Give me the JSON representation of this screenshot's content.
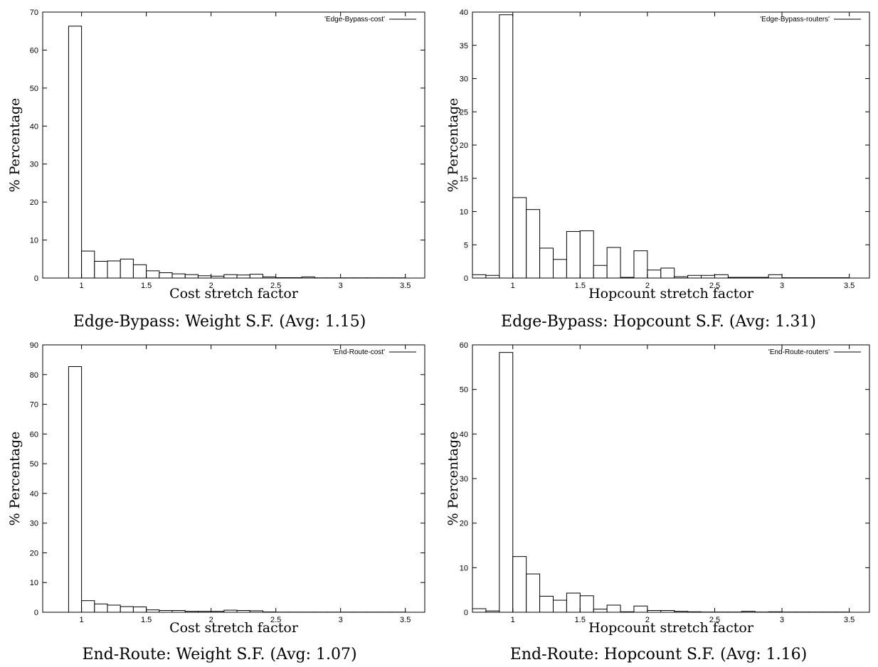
{
  "chart_data": [
    {
      "type": "bar",
      "title": "",
      "xlabel": "Cost  stretch  factor",
      "ylabel": "%  Percentage",
      "caption": "Edge-Bypass:  Weight S.F. (Avg:  1.15)",
      "legend": "'Edge-Bypass-cost'",
      "legend_position": "top-right",
      "xlim": [
        0.7,
        3.65
      ],
      "ylim": [
        0,
        70
      ],
      "xticks": [
        "1",
        "1.5",
        "2",
        "2.5",
        "3",
        "3.5"
      ],
      "yticks": [
        "0",
        "10",
        "20",
        "30",
        "40",
        "50",
        "60",
        "70"
      ],
      "bin_width": 0.1,
      "x": [
        0.95,
        1.05,
        1.15,
        1.25,
        1.35,
        1.45,
        1.55,
        1.65,
        1.75,
        1.85,
        1.95,
        2.05,
        2.15,
        2.25,
        2.35,
        2.45,
        2.55,
        2.65,
        2.75,
        2.85,
        2.95,
        3.05,
        3.15,
        3.25,
        3.35,
        3.45
      ],
      "values": [
        66.3,
        7.1,
        4.4,
        4.5,
        5.0,
        3.5,
        1.9,
        1.4,
        1.1,
        0.9,
        0.6,
        0.5,
        0.9,
        0.8,
        1.0,
        0.3,
        0.1,
        0.1,
        0.3,
        0.05,
        0.05,
        0.05,
        0.05,
        0.05,
        0.05,
        0.05
      ]
    },
    {
      "type": "bar",
      "title": "",
      "xlabel": "Hopcount  stretch  factor",
      "ylabel": "%  Percentage",
      "caption": "Edge-Bypass:  Hopcount S.F. (Avg:  1.31)",
      "legend": "'Edge-Bypass-routers'",
      "legend_position": "top-right",
      "xlim": [
        0.7,
        3.65
      ],
      "ylim": [
        0,
        40
      ],
      "xticks": [
        "1",
        "1.5",
        "2",
        "2.5",
        "3",
        "3.5"
      ],
      "yticks": [
        "0",
        "5",
        "10",
        "15",
        "20",
        "25",
        "30",
        "35",
        "40"
      ],
      "bin_width": 0.1,
      "x": [
        0.75,
        0.85,
        0.95,
        1.05,
        1.15,
        1.25,
        1.35,
        1.45,
        1.55,
        1.65,
        1.75,
        1.85,
        1.95,
        2.05,
        2.15,
        2.25,
        2.35,
        2.45,
        2.55,
        2.65,
        2.75,
        2.85,
        2.95,
        3.05,
        3.15,
        3.25,
        3.35,
        3.45
      ],
      "values": [
        0.5,
        0.4,
        39.6,
        12.1,
        10.3,
        4.5,
        2.8,
        7.0,
        7.1,
        1.9,
        4.6,
        0.1,
        4.1,
        1.2,
        1.5,
        0.2,
        0.4,
        0.4,
        0.5,
        0.1,
        0.1,
        0.1,
        0.5,
        0.05,
        0.05,
        0.05,
        0.05,
        0.05
      ]
    },
    {
      "type": "bar",
      "title": "",
      "xlabel": "Cost  stretch  factor",
      "ylabel": "%  Percentage",
      "caption": "End-Route:  Weight S.F. (Avg:  1.07)",
      "legend": "'End-Route-cost'",
      "legend_position": "top-right",
      "xlim": [
        0.7,
        3.65
      ],
      "ylim": [
        0,
        90
      ],
      "xticks": [
        "1",
        "1.5",
        "2",
        "2.5",
        "3",
        "3.5"
      ],
      "yticks": [
        "0",
        "10",
        "20",
        "30",
        "40",
        "50",
        "60",
        "70",
        "80",
        "90"
      ],
      "bin_width": 0.1,
      "x": [
        0.95,
        1.05,
        1.15,
        1.25,
        1.35,
        1.45,
        1.55,
        1.65,
        1.75,
        1.85,
        1.95,
        2.05,
        2.15,
        2.25,
        2.35,
        2.45,
        2.55,
        2.65,
        2.75,
        2.85,
        2.95,
        3.05,
        3.15,
        3.25,
        3.35,
        3.45
      ],
      "values": [
        82.7,
        3.9,
        2.8,
        2.4,
        1.9,
        1.8,
        0.8,
        0.6,
        0.6,
        0.3,
        0.3,
        0.3,
        0.7,
        0.6,
        0.5,
        0.1,
        0.05,
        0.05,
        0.05,
        0.05,
        0.05,
        0.05,
        0.05,
        0.05,
        0.05,
        0.05
      ]
    },
    {
      "type": "bar",
      "title": "",
      "xlabel": "Hopcount  stretch  factor",
      "ylabel": "%  Percentage",
      "caption": "End-Route:  Hopcount S.F. (Avg:  1.16)",
      "legend": "'End-Route-routers'",
      "legend_position": "top-right",
      "xlim": [
        0.7,
        3.65
      ],
      "ylim": [
        0,
        60
      ],
      "xticks": [
        "1",
        "1.5",
        "2",
        "2.5",
        "3",
        "3.5"
      ],
      "yticks": [
        "0",
        "10",
        "20",
        "30",
        "40",
        "50",
        "60"
      ],
      "bin_width": 0.1,
      "x": [
        0.75,
        0.85,
        0.95,
        1.05,
        1.15,
        1.25,
        1.35,
        1.45,
        1.55,
        1.65,
        1.75,
        1.85,
        1.95,
        2.05,
        2.15,
        2.25,
        2.35,
        2.45,
        2.55,
        2.65,
        2.75,
        2.85,
        2.95,
        3.05,
        3.15,
        3.25,
        3.35,
        3.45
      ],
      "values": [
        0.8,
        0.3,
        58.3,
        12.5,
        8.6,
        3.6,
        2.7,
        4.3,
        3.7,
        0.7,
        1.6,
        0.1,
        1.4,
        0.4,
        0.4,
        0.2,
        0.1,
        0.05,
        0.05,
        0.05,
        0.2,
        0.05,
        0.1,
        0.05,
        0.05,
        0.05,
        0.05,
        0.05
      ]
    }
  ]
}
